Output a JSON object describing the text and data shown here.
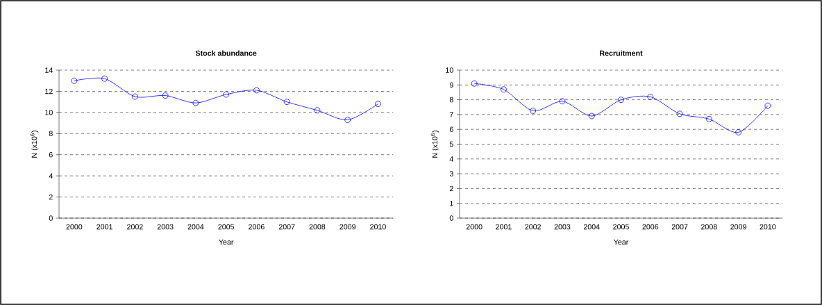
{
  "chart_data": [
    {
      "type": "line",
      "title": "Stock abundance",
      "xlabel": "Year",
      "ylabel": "N (x10$^{6}$)",
      "categories": [
        "2000",
        "2001",
        "2002",
        "2003",
        "2004",
        "2005",
        "2006",
        "2007",
        "2008",
        "2009",
        "2010"
      ],
      "series": [
        {
          "color": "#0000ff",
          "values": [
            13.0,
            13.2,
            11.5,
            11.6,
            10.9,
            11.7,
            12.1,
            11.0,
            10.2,
            9.3,
            10.8
          ]
        }
      ],
      "ylim": [
        0,
        14
      ],
      "yticks": [
        0,
        2,
        4,
        6,
        8,
        10,
        12,
        14
      ],
      "grid": "y",
      "marker": "circle",
      "line_style": "solid"
    },
    {
      "type": "line",
      "title": "Recruitment",
      "xlabel": "Year",
      "ylabel": "N (x10$^{6}$)",
      "categories": [
        "2000",
        "2001",
        "2002",
        "2003",
        "2004",
        "2005",
        "2006",
        "2007",
        "2008",
        "2009",
        "2010"
      ],
      "series": [
        {
          "color": "#0000ff",
          "values": [
            9.1,
            8.7,
            7.25,
            7.9,
            6.9,
            8.0,
            8.2,
            7.05,
            6.7,
            5.8,
            7.6
          ]
        }
      ],
      "ylim": [
        0,
        10
      ],
      "yticks": [
        0,
        1,
        2,
        3,
        4,
        5,
        6,
        7,
        8,
        9,
        10
      ],
      "grid": "y",
      "marker": "circle",
      "line_style": "solid"
    }
  ]
}
